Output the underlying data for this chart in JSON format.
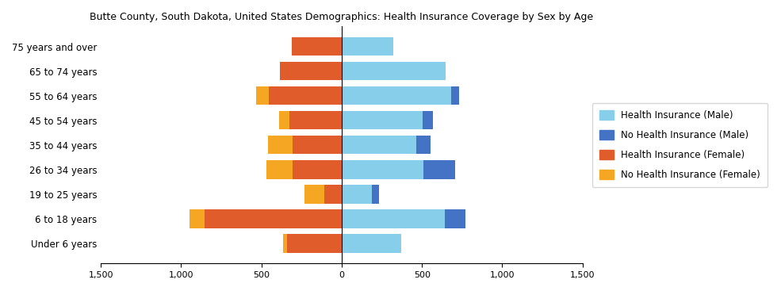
{
  "title": "Butte County, South Dakota, United States Demographics: Health Insurance Coverage by Sex by Age",
  "age_groups": [
    "Under 6 years",
    "6 to 18 years",
    "19 to 25 years",
    "26 to 34 years",
    "35 to 44 years",
    "45 to 54 years",
    "55 to 64 years",
    "65 to 74 years",
    "75 years and over"
  ],
  "health_insurance_male": [
    370,
    640,
    190,
    510,
    465,
    505,
    680,
    645,
    320
  ],
  "no_health_insurance_male": [
    0,
    130,
    40,
    195,
    90,
    65,
    50,
    0,
    0
  ],
  "health_insurance_female": [
    340,
    855,
    110,
    305,
    305,
    325,
    455,
    385,
    310
  ],
  "no_health_insurance_female": [
    25,
    95,
    120,
    165,
    155,
    65,
    80,
    0,
    0
  ],
  "colors": {
    "health_insurance_male": "#87CEEB",
    "no_health_insurance_male": "#4472C4",
    "health_insurance_female": "#E05C2A",
    "no_health_insurance_female": "#F5A623"
  },
  "xlim": [
    -1500,
    1500
  ],
  "xticks": [
    -1500,
    -1000,
    -500,
    0,
    500,
    1000,
    1500
  ],
  "xticklabels": [
    "1,500",
    "1,000",
    "500",
    "0",
    "500",
    "1,000",
    "1,500"
  ],
  "legend_labels": [
    "Health Insurance (Male)",
    "No Health Insurance (Male)",
    "Health Insurance (Female)",
    "No Health Insurance (Female)"
  ],
  "legend_colors": [
    "#87CEEB",
    "#4472C4",
    "#E05C2A",
    "#F5A623"
  ]
}
